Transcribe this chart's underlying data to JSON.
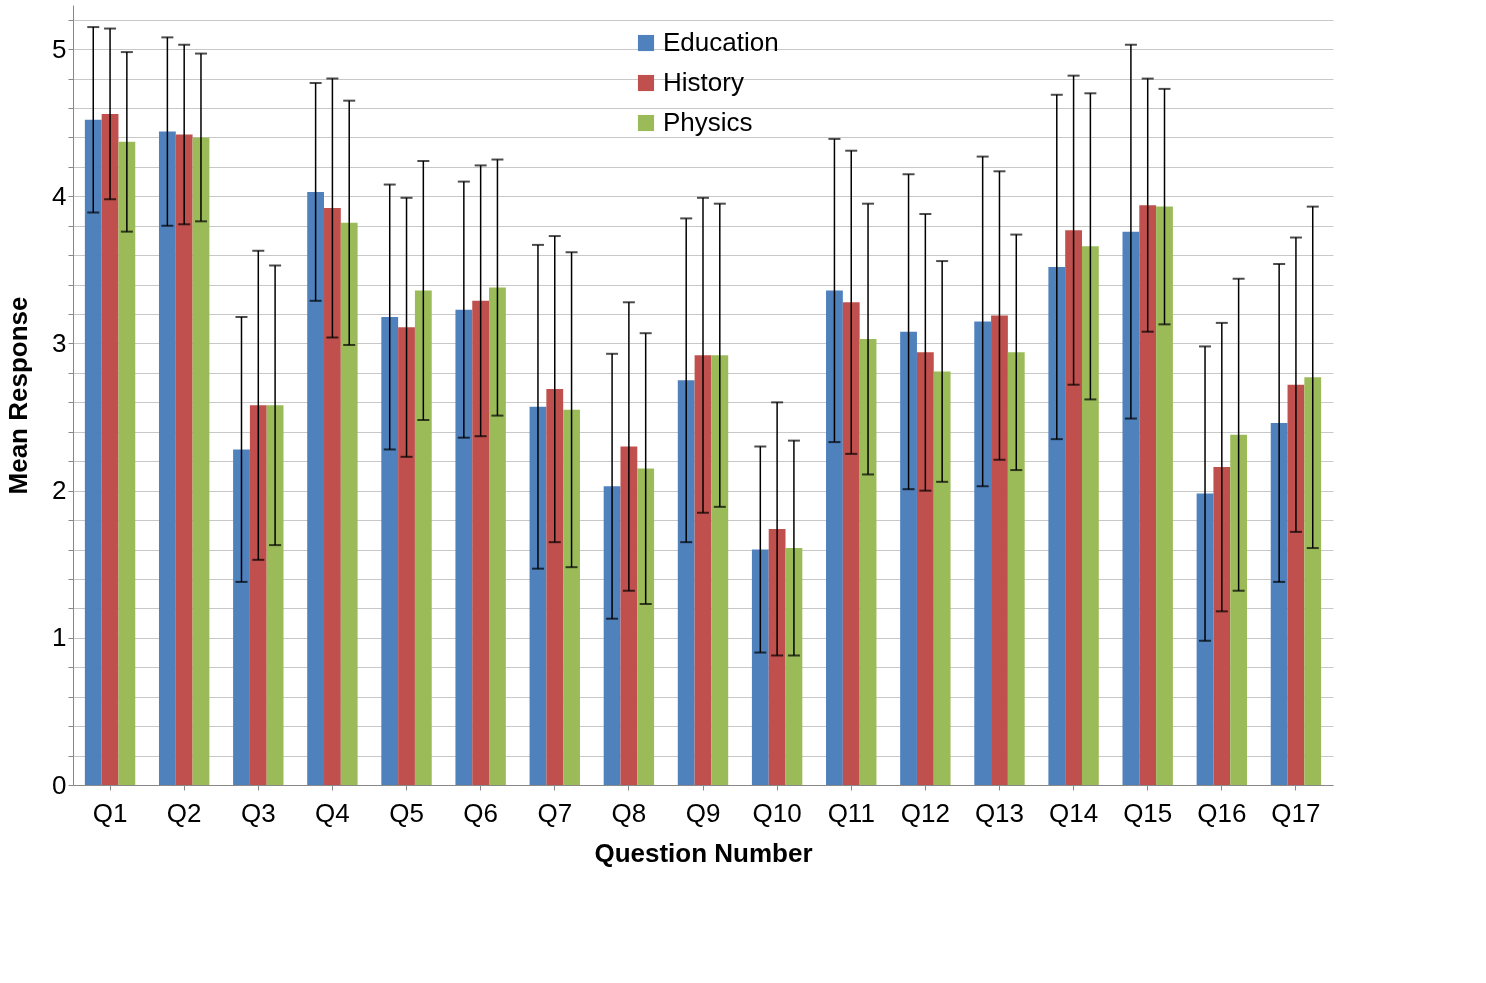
{
  "chart_data": {
    "type": "bar",
    "xlabel": "Question Number",
    "ylabel": "Mean Response",
    "categories": [
      "Q1",
      "Q2",
      "Q3",
      "Q4",
      "Q5",
      "Q6",
      "Q7",
      "Q8",
      "Q9",
      "Q10",
      "Q11",
      "Q12",
      "Q13",
      "Q14",
      "Q15",
      "Q16",
      "Q17"
    ],
    "series": [
      {
        "name": "Education",
        "color": "#4f81bd",
        "values": [
          4.52,
          4.44,
          2.28,
          4.03,
          3.18,
          3.23,
          2.57,
          2.03,
          2.75,
          1.6,
          3.36,
          3.08,
          3.15,
          3.52,
          3.76,
          1.98,
          2.46
        ],
        "errors": [
          0.63,
          0.64,
          0.9,
          0.74,
          0.9,
          0.87,
          1.1,
          0.9,
          1.1,
          0.7,
          1.03,
          1.07,
          1.12,
          1.17,
          1.27,
          1.0,
          1.08
        ]
      },
      {
        "name": "History",
        "color": "#c0504d",
        "values": [
          4.56,
          4.42,
          2.58,
          3.92,
          3.11,
          3.29,
          2.69,
          2.3,
          2.92,
          1.74,
          3.28,
          2.94,
          3.19,
          3.77,
          3.94,
          2.16,
          2.72
        ],
        "errors": [
          0.58,
          0.61,
          1.05,
          0.88,
          0.88,
          0.92,
          1.04,
          0.98,
          1.07,
          0.86,
          1.03,
          0.94,
          0.98,
          1.05,
          0.86,
          0.98,
          1.0
        ]
      },
      {
        "name": "Physics",
        "color": "#9bbb59",
        "values": [
          4.37,
          4.4,
          2.58,
          3.82,
          3.36,
          3.38,
          2.55,
          2.15,
          2.92,
          1.61,
          3.03,
          2.81,
          2.94,
          3.66,
          3.93,
          2.38,
          2.77
        ],
        "errors": [
          0.61,
          0.57,
          0.95,
          0.83,
          0.88,
          0.87,
          1.07,
          0.92,
          1.03,
          0.73,
          0.92,
          0.75,
          0.8,
          1.04,
          0.8,
          1.06,
          1.16
        ]
      }
    ],
    "ylim": [
      0,
      5.3
    ],
    "yticks": [
      0,
      {
        "value": 0.2,
        "label": null
      },
      {
        "value": 0.4,
        "label": null
      },
      {
        "value": 0.6,
        "label": null
      },
      {
        "value": 0.8,
        "label": null
      },
      1,
      {
        "value": 1.2,
        "label": null
      },
      {
        "value": 1.4,
        "label": null
      },
      {
        "value": 1.6,
        "label": null
      },
      {
        "value": 1.8,
        "label": null
      },
      2,
      {
        "value": 2.2,
        "label": null
      },
      {
        "value": 2.4,
        "label": null
      },
      {
        "value": 2.6,
        "label": null
      },
      {
        "value": 2.8,
        "label": null
      },
      3,
      {
        "value": 3.2,
        "label": null
      },
      {
        "value": 3.4,
        "label": null
      },
      {
        "value": 3.6,
        "label": null
      },
      {
        "value": 3.8,
        "label": null
      },
      4,
      {
        "value": 4.2,
        "label": null
      },
      {
        "value": 4.4,
        "label": null
      },
      {
        "value": 4.6,
        "label": null
      },
      {
        "value": 4.8,
        "label": null
      },
      5,
      {
        "value": 5.2,
        "label": null
      }
    ],
    "grid": "y",
    "legend": "top"
  }
}
